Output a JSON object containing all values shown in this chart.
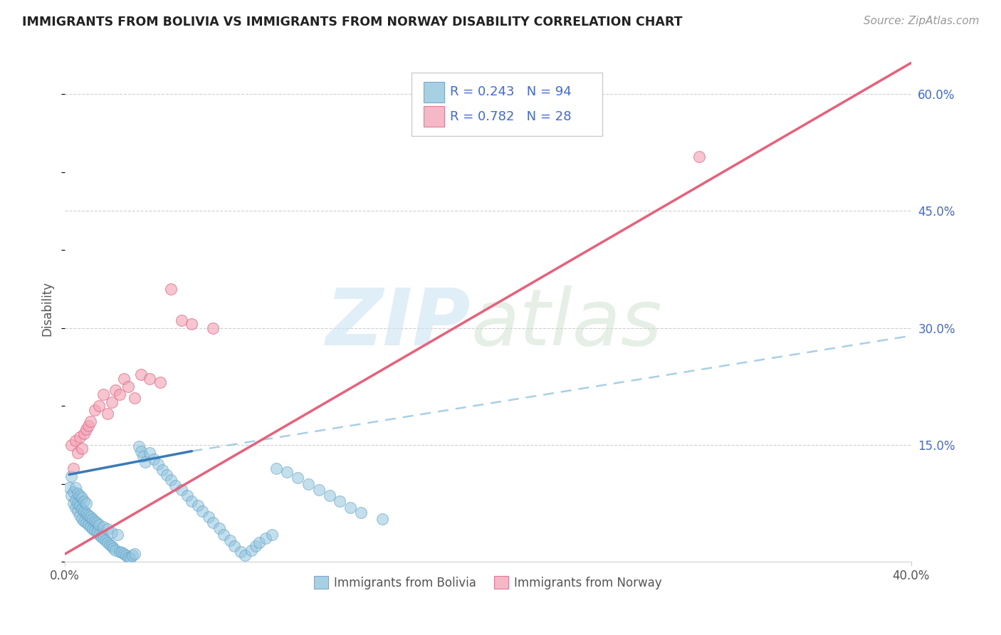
{
  "title": "IMMIGRANTS FROM BOLIVIA VS IMMIGRANTS FROM NORWAY DISABILITY CORRELATION CHART",
  "source": "Source: ZipAtlas.com",
  "ylabel": "Disability",
  "xlim": [
    0.0,
    0.4
  ],
  "ylim": [
    0.0,
    0.65
  ],
  "y_ticks_right": [
    0.15,
    0.3,
    0.45,
    0.6
  ],
  "y_tick_labels_right": [
    "15.0%",
    "30.0%",
    "45.0%",
    "60.0%"
  ],
  "bolivia_color": "#92c5de",
  "bolivia_edge_color": "#5b9ec9",
  "norway_color": "#f4a6b8",
  "norway_edge_color": "#e06080",
  "bolivia_line_color": "#3a7ab5",
  "norway_line_color": "#e8607a",
  "dashed_line_color": "#92c5de",
  "bolivia_R": 0.243,
  "bolivia_N": 94,
  "norway_R": 0.782,
  "norway_N": 28,
  "legend_text_color": "#4169e1",
  "legend_label_color": "#555555",
  "grid_color": "#d0d0d0",
  "bolivia_scatter_x": [
    0.002,
    0.003,
    0.003,
    0.004,
    0.004,
    0.005,
    0.005,
    0.005,
    0.006,
    0.006,
    0.006,
    0.007,
    0.007,
    0.007,
    0.008,
    0.008,
    0.008,
    0.009,
    0.009,
    0.009,
    0.01,
    0.01,
    0.01,
    0.011,
    0.011,
    0.012,
    0.012,
    0.013,
    0.013,
    0.014,
    0.014,
    0.015,
    0.015,
    0.016,
    0.016,
    0.017,
    0.018,
    0.018,
    0.019,
    0.02,
    0.02,
    0.021,
    0.022,
    0.022,
    0.023,
    0.024,
    0.025,
    0.026,
    0.027,
    0.028,
    0.029,
    0.03,
    0.031,
    0.032,
    0.033,
    0.035,
    0.036,
    0.037,
    0.038,
    0.04,
    0.042,
    0.044,
    0.046,
    0.048,
    0.05,
    0.052,
    0.055,
    0.058,
    0.06,
    0.063,
    0.065,
    0.068,
    0.07,
    0.073,
    0.075,
    0.078,
    0.08,
    0.083,
    0.085,
    0.088,
    0.09,
    0.092,
    0.095,
    0.098,
    0.1,
    0.105,
    0.11,
    0.115,
    0.12,
    0.125,
    0.13,
    0.135,
    0.14,
    0.15
  ],
  "bolivia_scatter_y": [
    0.095,
    0.085,
    0.11,
    0.075,
    0.09,
    0.07,
    0.08,
    0.095,
    0.065,
    0.075,
    0.088,
    0.06,
    0.072,
    0.085,
    0.055,
    0.068,
    0.082,
    0.052,
    0.065,
    0.078,
    0.05,
    0.062,
    0.075,
    0.048,
    0.06,
    0.045,
    0.058,
    0.042,
    0.055,
    0.04,
    0.052,
    0.038,
    0.05,
    0.035,
    0.048,
    0.032,
    0.03,
    0.045,
    0.028,
    0.025,
    0.042,
    0.022,
    0.02,
    0.038,
    0.018,
    0.015,
    0.035,
    0.013,
    0.012,
    0.01,
    0.008,
    0.006,
    0.005,
    0.008,
    0.01,
    0.148,
    0.142,
    0.135,
    0.128,
    0.14,
    0.132,
    0.125,
    0.118,
    0.112,
    0.105,
    0.098,
    0.092,
    0.085,
    0.078,
    0.072,
    0.065,
    0.058,
    0.05,
    0.043,
    0.035,
    0.028,
    0.02,
    0.013,
    0.008,
    0.015,
    0.02,
    0.025,
    0.03,
    0.035,
    0.12,
    0.115,
    0.108,
    0.1,
    0.092,
    0.085,
    0.078,
    0.07,
    0.063,
    0.055
  ],
  "norway_scatter_x": [
    0.003,
    0.004,
    0.005,
    0.006,
    0.007,
    0.008,
    0.009,
    0.01,
    0.011,
    0.012,
    0.014,
    0.016,
    0.018,
    0.02,
    0.022,
    0.024,
    0.026,
    0.028,
    0.03,
    0.033,
    0.036,
    0.04,
    0.045,
    0.05,
    0.055,
    0.06,
    0.07,
    0.3
  ],
  "norway_scatter_y": [
    0.15,
    0.12,
    0.155,
    0.14,
    0.16,
    0.145,
    0.165,
    0.17,
    0.175,
    0.18,
    0.195,
    0.2,
    0.215,
    0.19,
    0.205,
    0.22,
    0.215,
    0.235,
    0.225,
    0.21,
    0.24,
    0.235,
    0.23,
    0.35,
    0.31,
    0.305,
    0.3,
    0.52
  ],
  "bolivia_line_x": [
    0.002,
    0.06
  ],
  "bolivia_line_y": [
    0.112,
    0.142
  ],
  "dashed_line_x": [
    0.06,
    0.4
  ],
  "dashed_line_y": [
    0.142,
    0.29
  ],
  "norway_line_x": [
    0.0,
    0.4
  ],
  "norway_line_y": [
    0.01,
    0.64
  ]
}
